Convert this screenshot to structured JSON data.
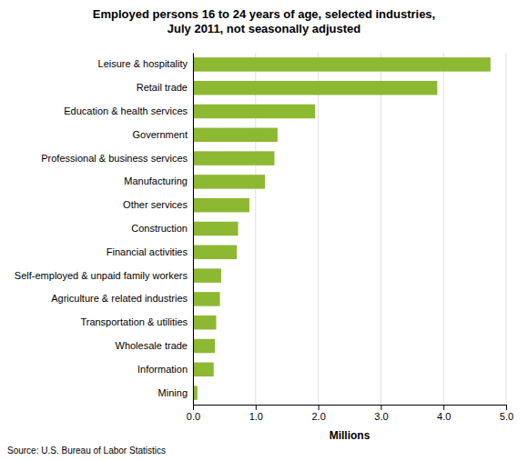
{
  "chart_data": {
    "type": "bar",
    "orientation": "horizontal",
    "title": "Employed persons 16 to 24 years of age, selected industries,\nJuly 2011, not seasonally adjusted",
    "categories": [
      "Leisure & hospitality",
      "Retail trade",
      "Education & health services",
      "Government",
      "Professional & business services",
      "Manufacturing",
      "Other services",
      "Construction",
      "Financial activities",
      "Self-employed & unpaid family workers",
      "Agriculture & related industries",
      "Transportation & utilities",
      "Wholesale trade",
      "Information",
      "Mining"
    ],
    "values": [
      4.75,
      3.9,
      1.95,
      1.35,
      1.3,
      1.15,
      0.9,
      0.72,
      0.7,
      0.45,
      0.43,
      0.37,
      0.35,
      0.33,
      0.07
    ],
    "color": "#8db832",
    "xlim": [
      0,
      5.0
    ],
    "xticks": [
      {
        "value": 0.0,
        "label": "0.0"
      },
      {
        "value": 1.0,
        "label": "1.0"
      },
      {
        "value": 2.0,
        "label": "2.0"
      },
      {
        "value": 3.0,
        "label": "3.0"
      },
      {
        "value": 4.0,
        "label": "4.0"
      },
      {
        "value": 5.0,
        "label": "5.0"
      }
    ],
    "xlabel": "Millions",
    "source": "Source: U.S. Bureau of Labor Statistics",
    "grid": true
  }
}
